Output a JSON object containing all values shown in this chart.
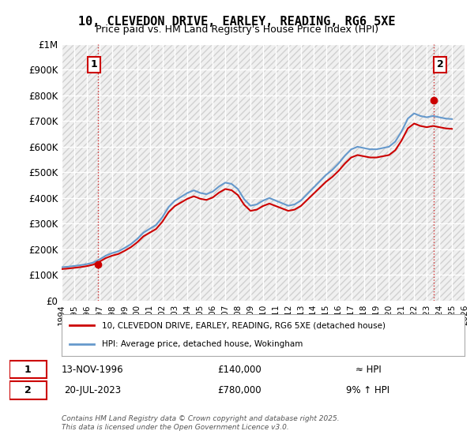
{
  "title": "10, CLEVEDON DRIVE, EARLEY, READING, RG6 5XE",
  "subtitle": "Price paid vs. HM Land Registry's House Price Index (HPI)",
  "legend_line1": "10, CLEVEDON DRIVE, EARLEY, READING, RG6 5XE (detached house)",
  "legend_line2": "HPI: Average price, detached house, Wokingham",
  "annotation1_label": "1",
  "annotation1_date": "13-NOV-1996",
  "annotation1_price": "£140,000",
  "annotation1_hpi": "≈ HPI",
  "annotation2_label": "2",
  "annotation2_date": "20-JUL-2023",
  "annotation2_price": "£780,000",
  "annotation2_hpi": "9% ↑ HPI",
  "footer": "Contains HM Land Registry data © Crown copyright and database right 2025.\nThis data is licensed under the Open Government Licence v3.0.",
  "sale_color": "#cc0000",
  "hpi_color": "#6699cc",
  "background_color": "#ffffff",
  "plot_bg_color": "#f0f0f0",
  "grid_color": "#ffffff",
  "hatch_color": "#d0d0d0",
  "ylim": [
    0,
    1000000
  ],
  "yticks": [
    0,
    100000,
    200000,
    300000,
    400000,
    500000,
    600000,
    700000,
    800000,
    900000,
    1000000
  ],
  "ytick_labels": [
    "£0",
    "£100K",
    "£200K",
    "£300K",
    "£400K",
    "£500K",
    "£600K",
    "£700K",
    "£800K",
    "£900K",
    "£1M"
  ],
  "xmin": 1994,
  "xmax": 2026,
  "sale1_x": 1996.87,
  "sale1_y": 140000,
  "sale2_x": 2023.55,
  "sale2_y": 780000,
  "hpi_data_x": [
    1994,
    1994.5,
    1995,
    1995.5,
    1996,
    1996.5,
    1997,
    1997.5,
    1998,
    1998.5,
    1999,
    1999.5,
    2000,
    2000.5,
    2001,
    2001.5,
    2002,
    2002.5,
    2003,
    2003.5,
    2004,
    2004.5,
    2005,
    2005.5,
    2006,
    2006.5,
    2007,
    2007.5,
    2008,
    2008.5,
    2009,
    2009.5,
    2010,
    2010.5,
    2011,
    2011.5,
    2012,
    2012.5,
    2013,
    2013.5,
    2014,
    2014.5,
    2015,
    2015.5,
    2016,
    2016.5,
    2017,
    2017.5,
    2018,
    2018.5,
    2019,
    2019.5,
    2020,
    2020.5,
    2021,
    2021.5,
    2022,
    2022.5,
    2023,
    2023.5,
    2024,
    2024.5,
    2025
  ],
  "hpi_data_y": [
    130000,
    132000,
    135000,
    138000,
    142000,
    148000,
    160000,
    175000,
    185000,
    192000,
    205000,
    220000,
    240000,
    265000,
    280000,
    295000,
    325000,
    365000,
    390000,
    405000,
    420000,
    430000,
    420000,
    415000,
    425000,
    445000,
    460000,
    455000,
    435000,
    395000,
    370000,
    375000,
    390000,
    400000,
    390000,
    380000,
    370000,
    375000,
    390000,
    415000,
    440000,
    465000,
    490000,
    510000,
    535000,
    565000,
    590000,
    600000,
    595000,
    590000,
    590000,
    595000,
    600000,
    620000,
    660000,
    710000,
    730000,
    720000,
    715000,
    720000,
    715000,
    710000,
    708000
  ]
}
